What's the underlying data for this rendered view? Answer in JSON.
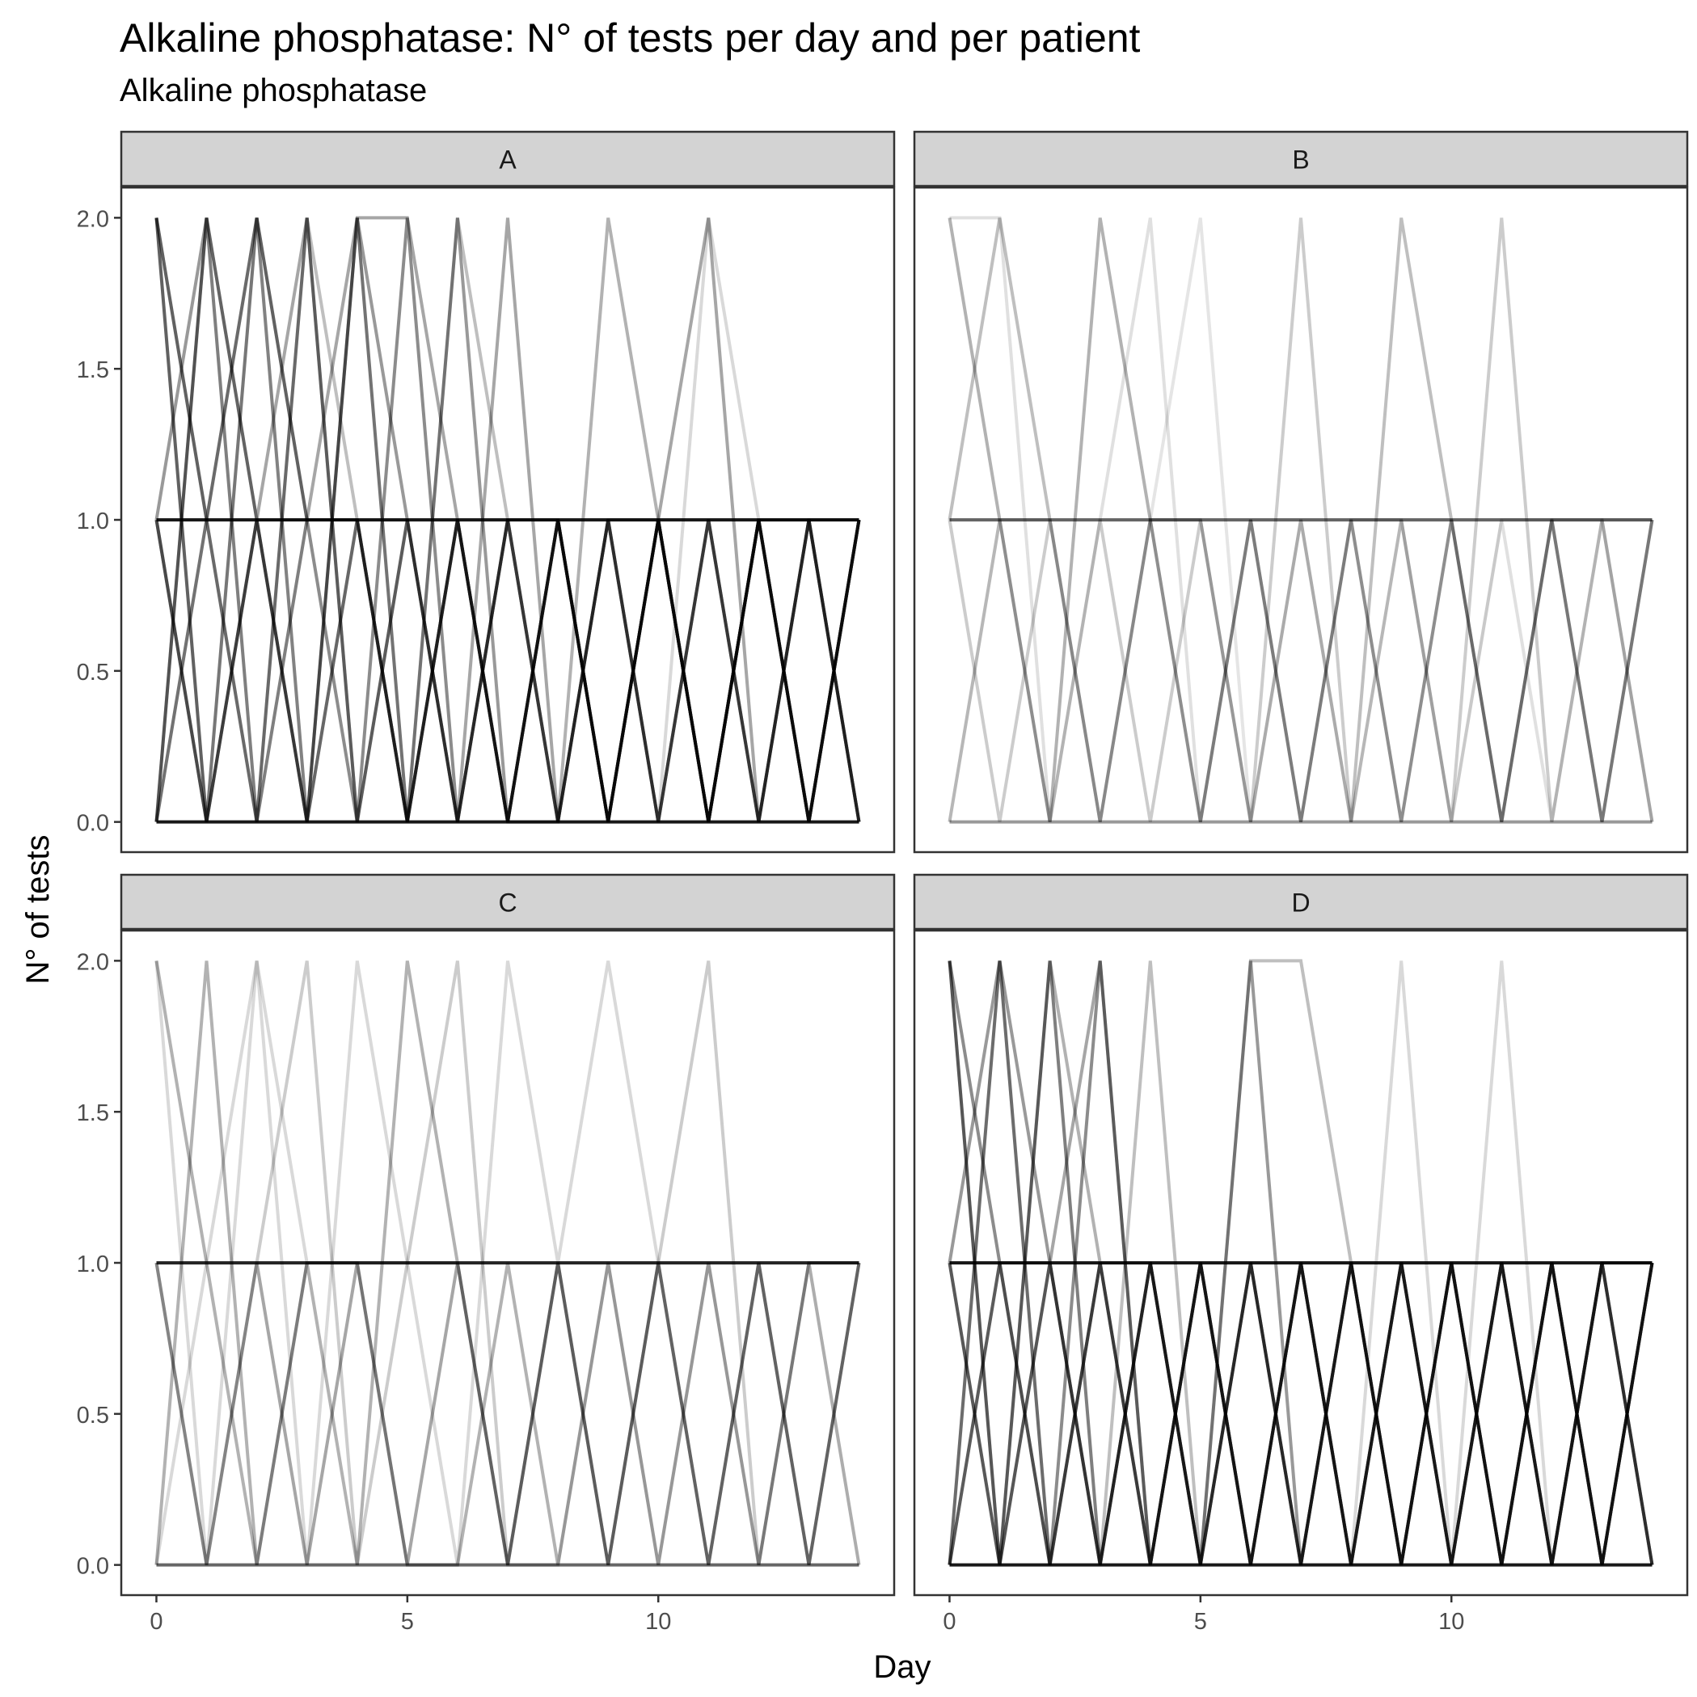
{
  "title": "Alkaline phosphatase: N° of tests per day and per patient",
  "subtitle": "Alkaline phosphatase",
  "chart_data": {
    "type": "line",
    "xlabel": "Day",
    "ylabel": "N° of tests",
    "xlim": [
      -0.7,
      14.7
    ],
    "ylim": [
      -0.1,
      2.1
    ],
    "x_ticks": [
      0,
      5,
      10
    ],
    "y_ticks": [
      0.0,
      0.5,
      1.0,
      1.5,
      2.0
    ],
    "x_tick_labels": [
      "0",
      "5",
      "10"
    ],
    "y_tick_labels": [
      "0.0",
      "0.5",
      "1.0",
      "1.5",
      "2.0"
    ],
    "grid": false,
    "line_color": "#000000",
    "strip_fill": "#d3d3d3",
    "days": [
      0,
      1,
      2,
      3,
      4,
      5,
      6,
      7,
      8,
      9,
      10,
      11,
      12,
      13,
      14
    ],
    "panels": [
      {
        "label": "A",
        "series": [
          {
            "values": [
              1,
              1,
              1,
              1,
              1,
              1,
              1,
              1,
              1,
              1,
              1,
              1,
              1,
              1,
              1
            ],
            "alpha": 0.9
          },
          {
            "values": [
              0,
              0,
              0,
              0,
              0,
              0,
              0,
              0,
              0,
              0,
              0,
              0,
              0,
              0,
              0
            ],
            "alpha": 0.9
          },
          {
            "values": [
              2,
              0,
              1,
              0,
              2,
              0,
              1,
              0,
              1,
              0,
              1,
              0,
              1,
              0,
              1
            ],
            "alpha": 0.55
          },
          {
            "values": [
              0,
              2,
              0,
              1,
              1,
              0,
              1,
              0,
              1,
              0,
              1,
              0,
              1,
              1,
              0
            ],
            "alpha": 0.5
          },
          {
            "values": [
              1,
              0,
              2,
              1,
              0,
              2,
              0,
              1,
              0,
              1,
              0,
              1,
              0,
              1,
              1
            ],
            "alpha": 0.45
          },
          {
            "values": [
              2,
              1,
              0,
              2,
              0,
              1,
              0,
              1,
              1,
              0,
              1,
              0,
              1,
              0,
              1
            ],
            "alpha": 0.45
          },
          {
            "values": [
              0,
              1,
              2,
              0,
              1,
              0,
              2,
              0,
              1,
              0,
              1,
              0,
              1,
              0,
              1
            ],
            "alpha": 0.4
          },
          {
            "values": [
              1,
              2,
              1,
              0,
              2,
              1,
              0,
              1,
              0,
              1,
              0,
              1,
              0,
              1,
              0
            ],
            "alpha": 0.4
          },
          {
            "values": [
              0,
              2,
              1,
              2,
              0,
              1,
              0,
              2,
              0,
              1,
              0,
              1,
              0,
              1,
              0
            ],
            "alpha": 0.35
          },
          {
            "values": [
              2,
              1,
              2,
              1,
              1,
              0,
              1,
              0,
              0,
              2,
              1,
              0,
              1,
              0,
              1
            ],
            "alpha": 0.3
          },
          {
            "values": [
              1,
              0,
              1,
              1,
              2,
              2,
              1,
              0,
              1,
              0,
              1,
              2,
              0,
              1,
              0
            ],
            "alpha": 0.35
          },
          {
            "values": [
              0,
              1,
              0,
              2,
              1,
              0,
              2,
              1,
              0,
              1,
              1,
              0,
              1,
              0,
              1
            ],
            "alpha": 0.25
          },
          {
            "values": [
              1,
              0,
              1,
              0,
              1,
              0,
              1,
              0,
              1,
              0,
              1,
              0,
              1,
              0,
              1
            ],
            "alpha": 0.2
          },
          {
            "values": [
              2,
              0,
              2,
              0,
              1,
              1,
              0,
              1,
              0,
              1,
              0,
              2,
              1,
              0,
              1
            ],
            "alpha": 0.15
          }
        ]
      },
      {
        "label": "B",
        "series": [
          {
            "values": [
              1,
              1,
              1,
              1,
              1,
              1,
              1,
              1,
              1,
              1,
              1,
              1,
              1,
              1,
              1
            ],
            "alpha": 0.6
          },
          {
            "values": [
              0,
              0,
              0,
              0,
              0,
              0,
              0,
              0,
              0,
              0,
              0,
              0,
              0,
              0,
              0
            ],
            "alpha": 0.4
          },
          {
            "values": [
              2,
              1,
              0,
              2,
              1,
              0,
              1,
              0,
              1,
              0,
              1,
              0,
              1,
              0,
              1
            ],
            "alpha": 0.3
          },
          {
            "values": [
              1,
              2,
              1,
              0,
              1,
              1,
              0,
              1,
              0,
              2,
              1,
              0,
              1,
              0,
              1
            ],
            "alpha": 0.25
          },
          {
            "values": [
              0,
              1,
              0,
              1,
              0,
              1,
              0,
              2,
              0,
              1,
              0,
              2,
              0,
              1,
              0
            ],
            "alpha": 0.2
          },
          {
            "values": [
              1,
              0,
              1,
              0,
              1,
              0,
              1,
              0,
              1,
              0,
              1,
              0,
              1,
              1,
              0
            ],
            "alpha": 0.2
          },
          {
            "values": [
              2,
              2,
              0,
              1,
              2,
              0,
              1,
              0,
              1,
              1,
              0,
              1,
              0,
              1,
              1
            ],
            "alpha": 0.12
          },
          {
            "values": [
              0,
              1,
              1,
              0,
              1,
              2,
              0,
              1,
              0,
              1,
              0,
              1,
              1,
              0,
              1
            ],
            "alpha": 0.1
          }
        ]
      },
      {
        "label": "C",
        "series": [
          {
            "values": [
              1,
              1,
              1,
              1,
              1,
              1,
              1,
              1,
              1,
              1,
              1,
              1,
              1,
              1,
              1
            ],
            "alpha": 0.85
          },
          {
            "values": [
              0,
              0,
              0,
              0,
              0,
              0,
              0,
              0,
              0,
              0,
              0,
              0,
              0,
              0,
              0
            ],
            "alpha": 0.6
          },
          {
            "values": [
              1,
              0,
              1,
              0,
              1,
              0,
              1,
              0,
              1,
              0,
              1,
              0,
              1,
              0,
              1
            ],
            "alpha": 0.35
          },
          {
            "values": [
              0,
              2,
              0,
              1,
              0,
              2,
              1,
              0,
              1,
              0,
              1,
              0,
              1,
              0,
              1
            ],
            "alpha": 0.3
          },
          {
            "values": [
              2,
              1,
              0,
              1,
              1,
              0,
              0,
              1,
              0,
              1,
              0,
              1,
              0,
              1,
              1
            ],
            "alpha": 0.3
          },
          {
            "values": [
              1,
              0,
              1,
              2,
              0,
              1,
              2,
              0,
              1,
              0,
              1,
              2,
              0,
              1,
              0
            ],
            "alpha": 0.2
          },
          {
            "values": [
              0,
              1,
              2,
              0,
              2,
              1,
              0,
              2,
              1,
              2,
              1,
              0,
              1,
              0,
              1
            ],
            "alpha": 0.15
          },
          {
            "values": [
              2,
              0,
              2,
              1,
              1,
              1,
              1,
              0,
              0,
              1,
              0,
              1,
              0,
              1,
              0
            ],
            "alpha": 0.15
          }
        ]
      },
      {
        "label": "D",
        "series": [
          {
            "values": [
              1,
              1,
              1,
              1,
              1,
              1,
              1,
              1,
              1,
              1,
              1,
              1,
              1,
              1,
              1
            ],
            "alpha": 0.9
          },
          {
            "values": [
              0,
              0,
              0,
              0,
              0,
              0,
              0,
              0,
              0,
              0,
              0,
              0,
              0,
              0,
              0
            ],
            "alpha": 0.9
          },
          {
            "values": [
              2,
              0,
              1,
              0,
              1,
              0,
              1,
              0,
              1,
              0,
              1,
              0,
              1,
              0,
              1
            ],
            "alpha": 0.55
          },
          {
            "values": [
              0,
              2,
              0,
              1,
              0,
              1,
              0,
              1,
              0,
              1,
              0,
              1,
              0,
              1,
              0
            ],
            "alpha": 0.5
          },
          {
            "values": [
              1,
              0,
              2,
              0,
              1,
              0,
              1,
              0,
              1,
              0,
              1,
              0,
              1,
              0,
              1
            ],
            "alpha": 0.5
          },
          {
            "values": [
              2,
              1,
              0,
              2,
              0,
              1,
              0,
              1,
              0,
              1,
              0,
              1,
              0,
              1,
              0
            ],
            "alpha": 0.45
          },
          {
            "values": [
              0,
              1,
              0,
              1,
              0,
              1,
              0,
              1,
              0,
              1,
              0,
              1,
              0,
              1,
              1
            ],
            "alpha": 0.45
          },
          {
            "values": [
              1,
              2,
              1,
              0,
              1,
              0,
              2,
              0,
              1,
              0,
              1,
              0,
              1,
              0,
              1
            ],
            "alpha": 0.4
          },
          {
            "values": [
              0,
              1,
              1,
              2,
              0,
              1,
              0,
              1,
              0,
              1,
              0,
              1,
              0,
              1,
              0
            ],
            "alpha": 0.35
          },
          {
            "values": [
              1,
              0,
              2,
              1,
              1,
              0,
              1,
              0,
              1,
              0,
              1,
              0,
              1,
              0,
              1
            ],
            "alpha": 0.3
          },
          {
            "values": [
              2,
              0,
              1,
              0,
              2,
              0,
              2,
              2,
              1,
              0,
              1,
              0,
              1,
              0,
              1
            ],
            "alpha": 0.25
          },
          {
            "values": [
              0,
              2,
              0,
              1,
              0,
              1,
              0,
              1,
              0,
              2,
              0,
              2,
              0,
              1,
              1
            ],
            "alpha": 0.15
          }
        ]
      }
    ]
  }
}
